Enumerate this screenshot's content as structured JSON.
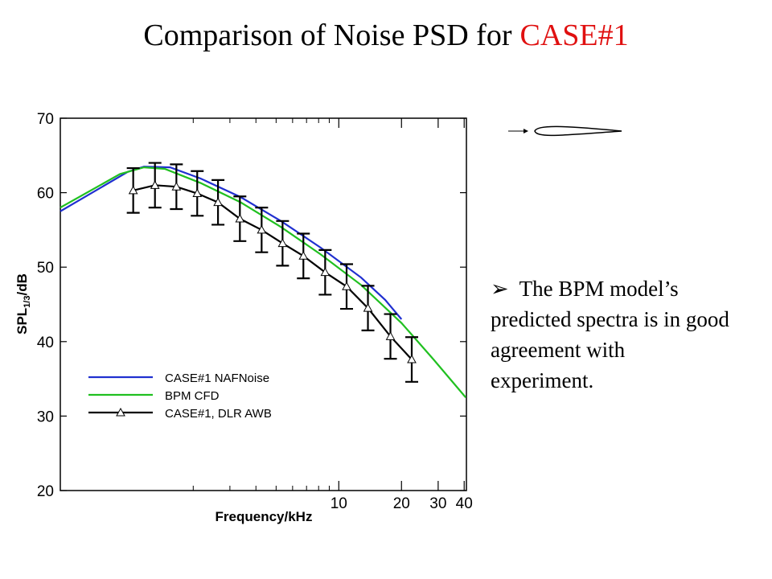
{
  "chart_data": {
    "type": "line",
    "title": "Comparison of Noise PSD for",
    "title_highlight": "CASE#1",
    "xlabel": "Frequency/kHz",
    "ylabel": {
      "main": "SPL",
      "sub": "1/3",
      "unit": "/dB"
    },
    "log_x": true,
    "xlim": [
      0.46,
      41
    ],
    "xticks": [
      10,
      20,
      30,
      40
    ],
    "xminorticks": [
      2,
      3,
      4,
      5,
      6,
      7,
      8,
      9
    ],
    "ylim": [
      20,
      70
    ],
    "yticks": [
      20,
      30,
      40,
      50,
      60,
      70
    ],
    "legend": "lower left",
    "series": [
      {
        "name": "CASE#1 NAFNoise",
        "color": "#2030d0",
        "x": [
          0.46,
          0.97,
          1.16,
          1.55,
          2.17,
          3.38,
          5.27,
          8.2,
          12.8,
          16.7,
          20
        ],
        "values": [
          57.5,
          62.8,
          63.5,
          63.4,
          61.9,
          59.4,
          56.2,
          52.6,
          48.6,
          45.6,
          43.0
        ]
      },
      {
        "name": "BPM CFD",
        "color": "#20c020",
        "x": [
          0.46,
          0.89,
          1.16,
          1.46,
          2.17,
          3.38,
          5.27,
          8.2,
          12.8,
          20,
          28.5,
          40.7
        ],
        "values": [
          58.0,
          62.5,
          63.4,
          63.2,
          61.3,
          58.7,
          55.4,
          51.7,
          47.6,
          42.5,
          37.6,
          32.5
        ]
      },
      {
        "name": "CASE#1, DLR AWB",
        "color": "#000000",
        "marker": "triangle",
        "x": [
          1.03,
          1.31,
          1.66,
          2.09,
          2.63,
          3.35,
          4.26,
          5.37,
          6.76,
          8.6,
          10.9,
          13.8,
          17.7,
          22.4
        ],
        "values": [
          60.3,
          61.0,
          60.8,
          59.9,
          58.7,
          56.5,
          55.0,
          53.2,
          51.5,
          49.3,
          47.4,
          44.5,
          40.7,
          37.6
        ],
        "errors": [
          3,
          3,
          3,
          3,
          3,
          3,
          3,
          3,
          3,
          3,
          3,
          3,
          3,
          3
        ]
      }
    ]
  },
  "note": {
    "bullet": "➢",
    "text": "The BPM model’s predicted spectra is in good agreement with experiment."
  }
}
